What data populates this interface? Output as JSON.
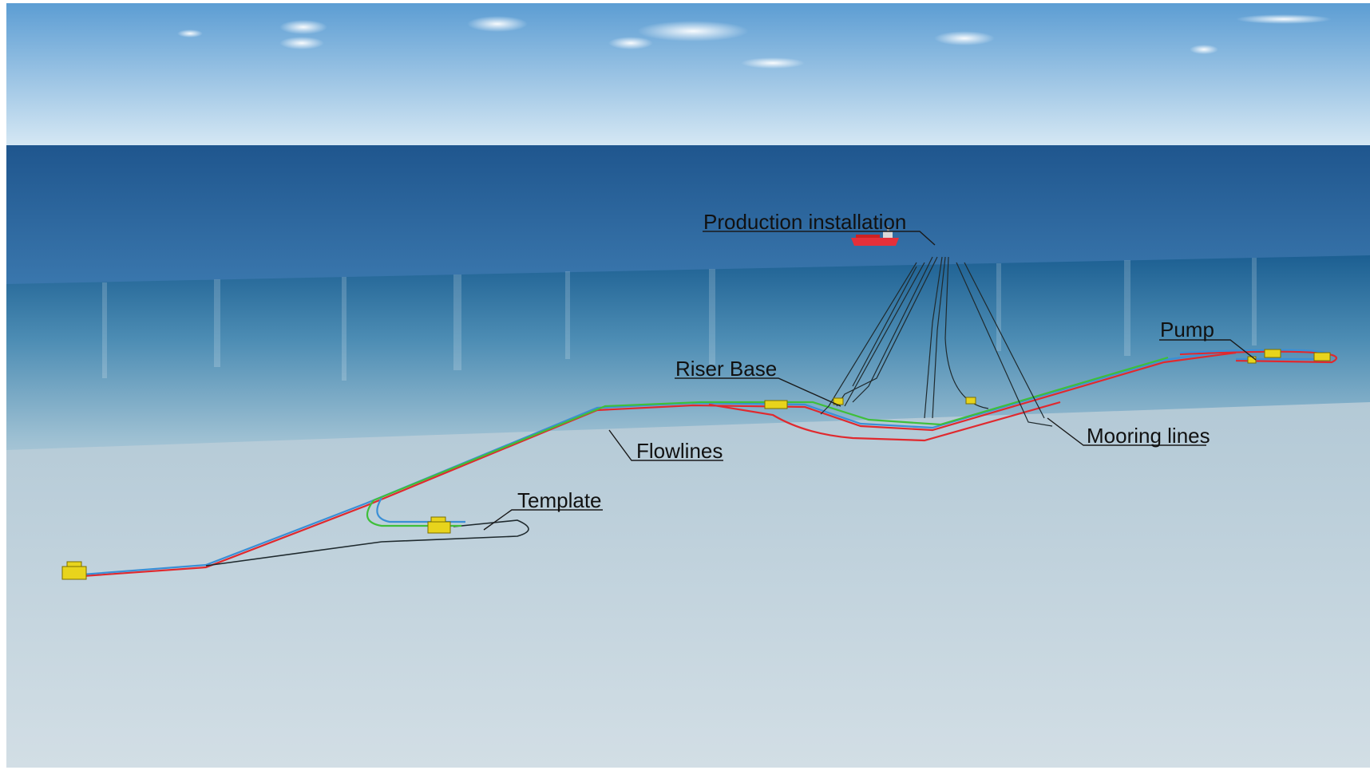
{
  "labels": {
    "production_installation": "Production installation",
    "riser_base": "Riser Base",
    "pump": "Pump",
    "flowlines": "Flowlines",
    "mooring_lines": "Mooring lines",
    "template": "Template"
  },
  "colors": {
    "sky_top": "#5f9fd3",
    "sky_bottom": "#cfe4f3",
    "sea_surface": "#2f6aa2",
    "underwater": "#2d6f9e",
    "seabed": "#c9d7df",
    "flowline_red": "#e0292e",
    "flowline_green": "#3fbf3a",
    "flowline_blue": "#3a8fd6",
    "flowline_dark": "#1f2a2e",
    "equipment": "#e8d41c",
    "vessel": "#e5303a"
  },
  "icons": {
    "vessel": "vessel-icon",
    "subsea_structure": "subsea-structure-icon"
  }
}
